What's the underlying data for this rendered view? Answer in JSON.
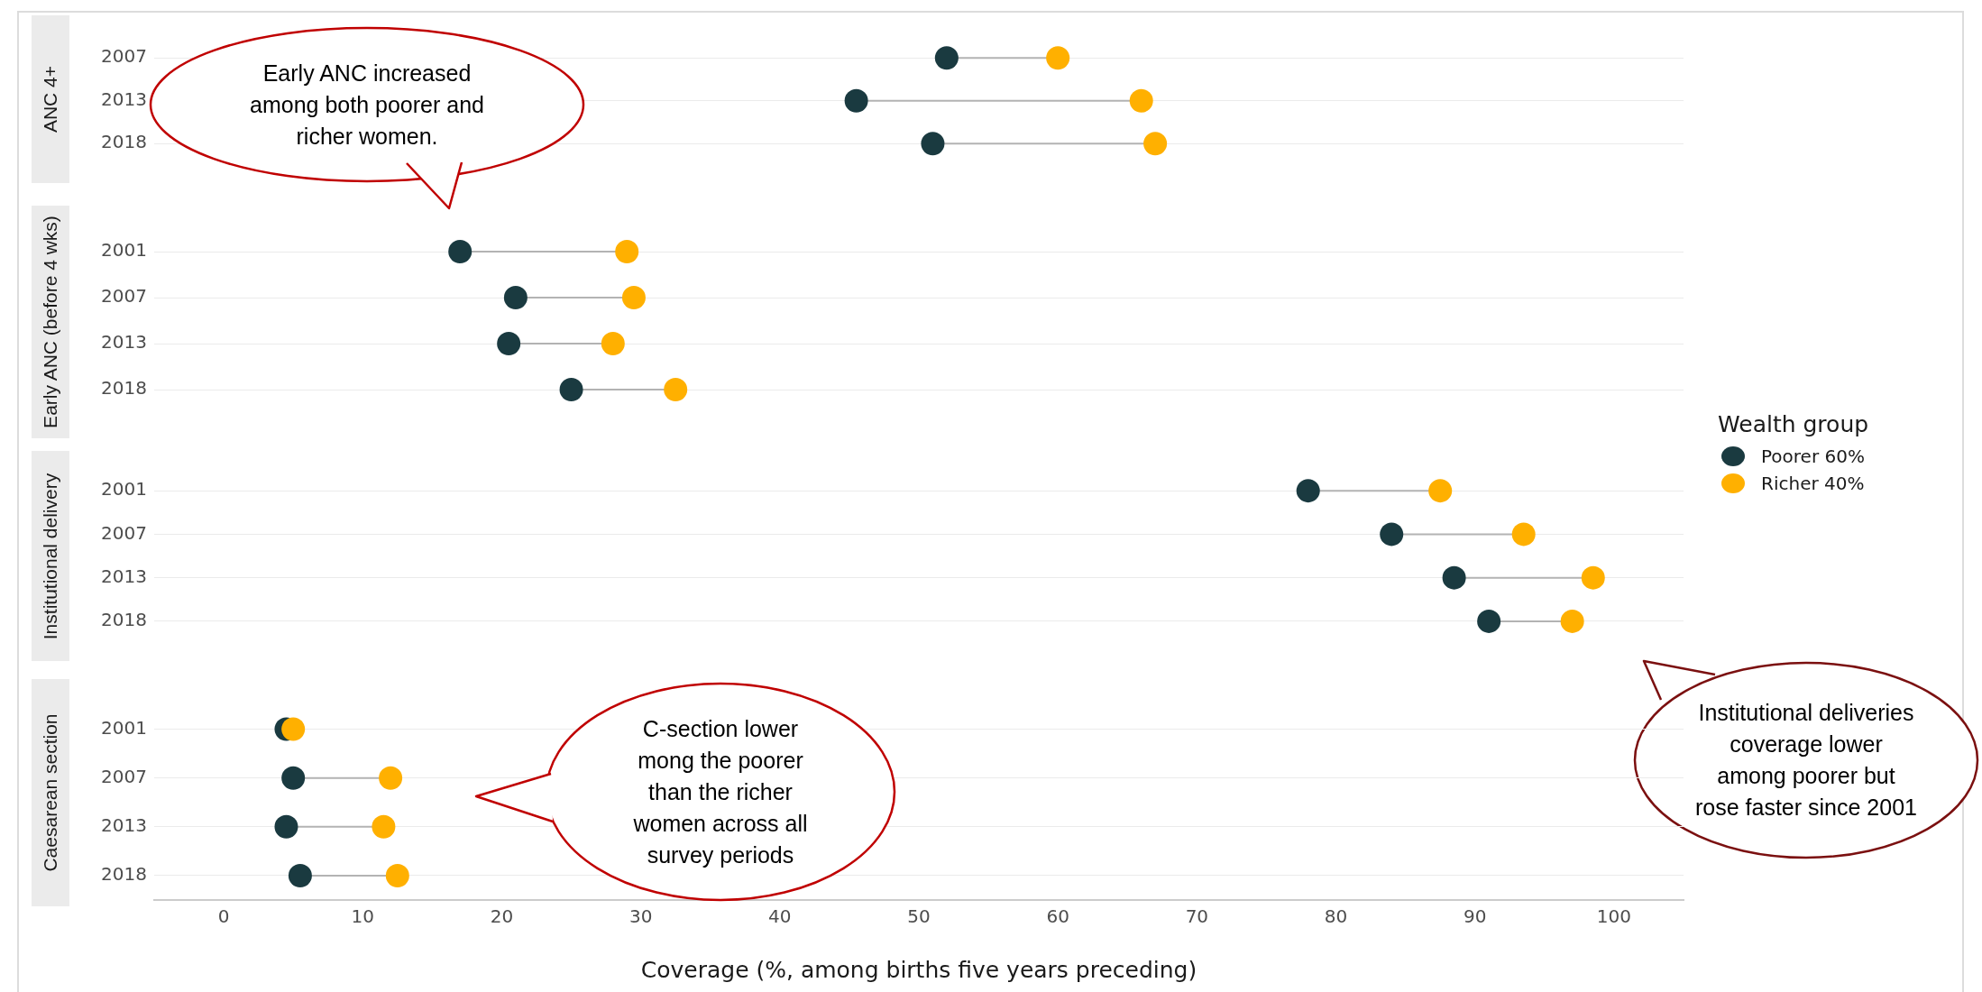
{
  "chart_data": [
    {
      "type": "scatter",
      "orientation": "horizontal",
      "title": "ANC 4+",
      "categories": [
        "2007",
        "2013",
        "2018"
      ],
      "marker": "circle",
      "grid": "y",
      "tick_labels": "y",
      "legend": false,
      "xlim": [
        -5,
        105
      ],
      "xticks": [
        0,
        10,
        20,
        30,
        40,
        50,
        60,
        70,
        80,
        90,
        100
      ],
      "series": [
        {
          "color": "#1a3a40",
          "values": [
            52,
            45.5,
            51
          ]
        },
        {
          "color": "#ffb000",
          "values": [
            60,
            66,
            67
          ]
        }
      ],
      "annotations": [
        "Early ANC increased among both poorer and richer women."
      ]
    },
    {
      "type": "scatter",
      "orientation": "horizontal",
      "title": "Early ANC (before 4 wks)",
      "categories": [
        "2001",
        "2007",
        "2013",
        "2018"
      ],
      "marker": "circle",
      "grid": "y",
      "tick_labels": "y",
      "legend": "right",
      "legend_title": "Wealth group",
      "xlim": [
        -5,
        105
      ],
      "xticks": [
        0,
        10,
        20,
        30,
        40,
        50,
        60,
        70,
        80,
        90,
        100
      ],
      "series": [
        {
          "name": "Poorer 60%",
          "color": "#1a3a40",
          "values": [
            17,
            21,
            20.5,
            25
          ]
        },
        {
          "name": "Richer 40%",
          "color": "#ffb000",
          "values": [
            29,
            29.5,
            28,
            32.5
          ]
        }
      ]
    },
    {
      "type": "scatter",
      "orientation": "horizontal",
      "title": "Institutional delivery",
      "categories": [
        "2001",
        "2007",
        "2013",
        "2018"
      ],
      "marker": "circle",
      "grid": "y",
      "tick_labels": "y",
      "legend": false,
      "xlim": [
        -5,
        105
      ],
      "xticks": [
        0,
        10,
        20,
        30,
        40,
        50,
        60,
        70,
        80,
        90,
        100
      ],
      "series": [
        {
          "color": "#1a3a40",
          "values": [
            78,
            84,
            88.5,
            91
          ]
        },
        {
          "color": "#ffb000",
          "values": [
            87.5,
            93.5,
            98.5,
            97
          ]
        }
      ],
      "annotations": [
        "Institutional deliveries coverage lower among poorer but rose faster since 2001"
      ]
    },
    {
      "type": "scatter",
      "orientation": "horizontal",
      "title": "Caesarean section",
      "categories": [
        "2001",
        "2007",
        "2013",
        "2018"
      ],
      "marker": "circle",
      "grid": "y",
      "legend": false,
      "xlabel": "Coverage (%, among births five years preceding)",
      "xlim": [
        -5,
        105
      ],
      "xticks": [
        0,
        10,
        20,
        30,
        40,
        50,
        60,
        70,
        80,
        90,
        100
      ],
      "series": [
        {
          "color": "#1a3a40",
          "values": [
            4.5,
            5,
            4.5,
            5.5
          ]
        },
        {
          "color": "#ffb000",
          "values": [
            5,
            12,
            11.5,
            12.5
          ]
        }
      ],
      "annotations": [
        "C-section lower mong the poorer than the richer women across all survey periods"
      ]
    }
  ]
}
